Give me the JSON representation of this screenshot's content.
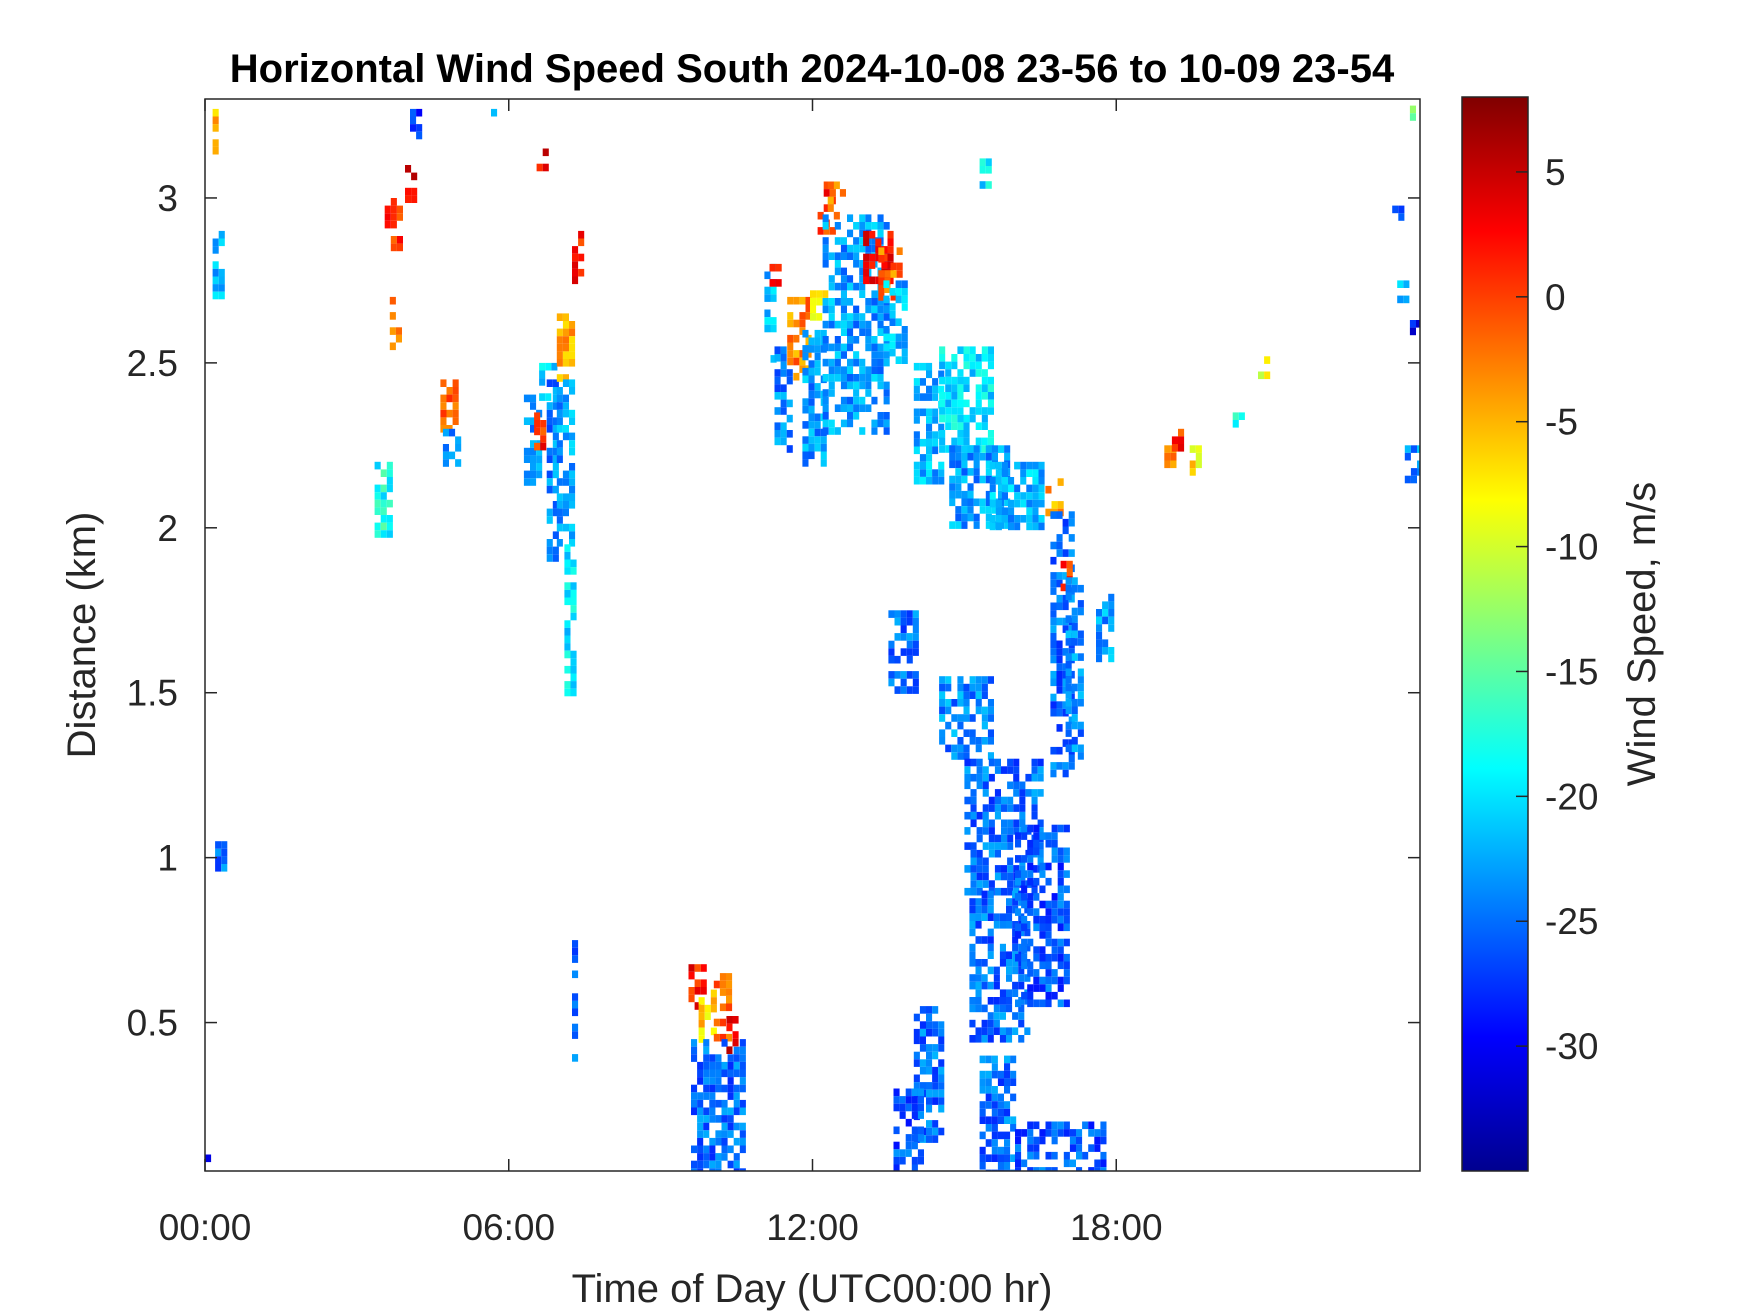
{
  "chart_data": {
    "type": "heatmap",
    "title": "Horizontal Wind Speed South 2024-10-08 23-56 to 10-09 23-54",
    "xlabel": "Time of Day (UTC00:00 hr)",
    "ylabel": "Distance (km)",
    "xlim": [
      0,
      24
    ],
    "ylim": [
      0.05,
      3.3
    ],
    "x_ticks": [
      {
        "value": 0,
        "label": "00:00"
      },
      {
        "value": 6,
        "label": "06:00"
      },
      {
        "value": 12,
        "label": "12:00"
      },
      {
        "value": 18,
        "label": "18:00"
      }
    ],
    "y_ticks": [
      {
        "value": 0.5,
        "label": "0.5"
      },
      {
        "value": 1,
        "label": "1"
      },
      {
        "value": 1.5,
        "label": "1.5"
      },
      {
        "value": 2,
        "label": "2"
      },
      {
        "value": 2.5,
        "label": "2.5"
      },
      {
        "value": 3,
        "label": "3"
      }
    ],
    "colorbar": {
      "label": "Wind Speed, m/s",
      "range": [
        -35,
        8
      ],
      "colormap": "jet",
      "ticks": [
        {
          "value": 5,
          "label": "5"
        },
        {
          "value": 0,
          "label": "0"
        },
        {
          "value": -5,
          "label": "-5"
        },
        {
          "value": -10,
          "label": "-10"
        },
        {
          "value": -15,
          "label": "-15"
        },
        {
          "value": -20,
          "label": "-20"
        },
        {
          "value": -25,
          "label": "-25"
        },
        {
          "value": -30,
          "label": "-30"
        }
      ]
    },
    "grid": false,
    "note": "Scattered data cells, approximated as rectangular patches of [t0_hr, t1_hr, d0_km, d1_km, speed_m_s]",
    "patches": [
      [
        0.15,
        0.25,
        3.15,
        3.27,
        -6
      ],
      [
        0.15,
        0.3,
        2.7,
        2.9,
        -22
      ],
      [
        0.2,
        0.35,
        0.98,
        1.05,
        -25
      ],
      [
        0.0,
        0.1,
        0.05,
        0.1,
        -28
      ],
      [
        3.35,
        3.6,
        1.98,
        2.2,
        -18
      ],
      [
        3.55,
        3.9,
        2.85,
        3.0,
        0
      ],
      [
        3.65,
        3.85,
        2.55,
        2.7,
        -3
      ],
      [
        3.95,
        4.1,
        3.0,
        3.1,
        3
      ],
      [
        4.05,
        4.25,
        3.2,
        3.27,
        -27
      ],
      [
        4.65,
        4.9,
        2.3,
        2.45,
        -2
      ],
      [
        4.7,
        4.95,
        2.2,
        2.3,
        -24
      ],
      [
        5.65,
        5.75,
        3.22,
        3.27,
        -20
      ],
      [
        6.3,
        6.6,
        2.15,
        2.45,
        -24
      ],
      [
        6.5,
        6.7,
        2.25,
        2.35,
        1
      ],
      [
        6.6,
        6.9,
        2.4,
        2.5,
        -20
      ],
      [
        6.55,
        6.7,
        3.1,
        3.15,
        3
      ],
      [
        6.75,
        6.95,
        1.9,
        2.45,
        -24
      ],
      [
        6.95,
        7.2,
        2.45,
        2.65,
        -4
      ],
      [
        6.95,
        7.25,
        1.95,
        2.45,
        -23
      ],
      [
        7.1,
        7.3,
        1.5,
        1.95,
        -20
      ],
      [
        7.25,
        7.4,
        2.75,
        2.9,
        2
      ],
      [
        7.25,
        7.35,
        0.4,
        0.75,
        -25
      ],
      [
        9.55,
        9.85,
        0.55,
        0.7,
        2
      ],
      [
        9.75,
        10.05,
        0.45,
        0.6,
        -6
      ],
      [
        10.05,
        10.3,
        0.45,
        0.65,
        -2
      ],
      [
        10.3,
        10.5,
        0.42,
        0.52,
        3
      ],
      [
        9.6,
        10.6,
        0.05,
        0.45,
        -25
      ],
      [
        11.05,
        11.2,
        2.5,
        2.8,
        -22
      ],
      [
        11.15,
        11.35,
        2.75,
        2.8,
        3
      ],
      [
        11.25,
        11.6,
        2.25,
        2.55,
        -24
      ],
      [
        11.5,
        11.9,
        2.45,
        2.7,
        -3
      ],
      [
        11.8,
        12.25,
        2.2,
        2.6,
        -23
      ],
      [
        11.95,
        12.3,
        2.65,
        2.72,
        -8
      ],
      [
        12.1,
        12.4,
        2.9,
        3.05,
        1
      ],
      [
        12.3,
        12.6,
        2.95,
        3.05,
        -4
      ],
      [
        12.2,
        13.5,
        2.3,
        2.95,
        -23
      ],
      [
        13.0,
        13.5,
        2.75,
        2.9,
        3
      ],
      [
        13.3,
        13.7,
        2.7,
        2.85,
        -2
      ],
      [
        13.4,
        13.8,
        2.5,
        2.75,
        -22
      ],
      [
        14.0,
        14.5,
        2.15,
        2.5,
        -22
      ],
      [
        14.5,
        15.5,
        2.25,
        2.55,
        -20
      ],
      [
        15.3,
        15.5,
        3.05,
        3.12,
        -20
      ],
      [
        14.7,
        15.8,
        2.0,
        2.25,
        -23
      ],
      [
        15.5,
        16.5,
        2.0,
        2.2,
        -22
      ],
      [
        16.6,
        16.9,
        2.05,
        2.15,
        -4
      ],
      [
        16.7,
        17.1,
        1.25,
        2.05,
        -25
      ],
      [
        16.9,
        17.05,
        1.75,
        1.9,
        1
      ],
      [
        17.0,
        17.35,
        1.3,
        1.85,
        -24
      ],
      [
        13.5,
        14.1,
        1.5,
        1.75,
        -25
      ],
      [
        14.5,
        15.5,
        1.3,
        1.55,
        -24
      ],
      [
        15.0,
        16.5,
        0.9,
        1.3,
        -25
      ],
      [
        15.1,
        16.2,
        0.45,
        0.9,
        -25
      ],
      [
        16.0,
        17.0,
        0.55,
        1.1,
        -26
      ],
      [
        14.0,
        14.6,
        0.15,
        0.55,
        -25
      ],
      [
        13.6,
        14.2,
        0.05,
        0.3,
        -26
      ],
      [
        15.3,
        16.0,
        0.05,
        0.4,
        -25
      ],
      [
        16.0,
        17.8,
        0.05,
        0.2,
        -26
      ],
      [
        17.6,
        17.9,
        1.6,
        1.8,
        -23
      ],
      [
        18.95,
        19.15,
        2.2,
        2.25,
        -3
      ],
      [
        19.1,
        19.25,
        2.25,
        2.3,
        1
      ],
      [
        19.45,
        19.6,
        2.15,
        2.25,
        -7
      ],
      [
        20.3,
        20.5,
        2.3,
        2.35,
        -18
      ],
      [
        20.8,
        21.0,
        2.45,
        2.52,
        -10
      ],
      [
        23.45,
        23.6,
        2.95,
        3.0,
        -25
      ],
      [
        23.55,
        23.7,
        2.7,
        2.75,
        -22
      ],
      [
        23.7,
        24.0,
        2.15,
        2.25,
        -24
      ],
      [
        23.8,
        23.95,
        2.6,
        2.63,
        -30
      ],
      [
        23.8,
        23.9,
        3.25,
        3.28,
        -14
      ]
    ]
  }
}
